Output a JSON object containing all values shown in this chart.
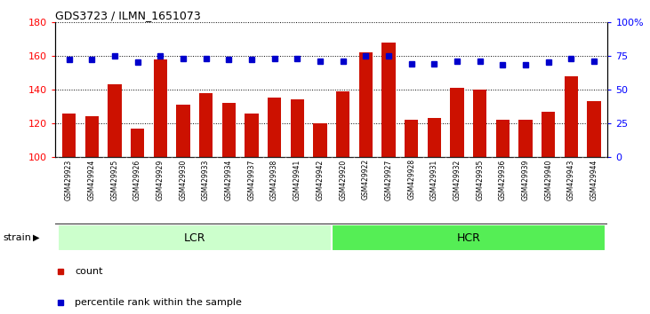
{
  "title": "GDS3723 / ILMN_1651073",
  "samples": [
    "GSM429923",
    "GSM429924",
    "GSM429925",
    "GSM429926",
    "GSM429929",
    "GSM429930",
    "GSM429933",
    "GSM429934",
    "GSM429937",
    "GSM429938",
    "GSM429941",
    "GSM429942",
    "GSM429920",
    "GSM429922",
    "GSM429927",
    "GSM429928",
    "GSM429931",
    "GSM429932",
    "GSM429935",
    "GSM429936",
    "GSM429939",
    "GSM429940",
    "GSM429943",
    "GSM429944"
  ],
  "counts": [
    126,
    124,
    143,
    117,
    158,
    131,
    138,
    132,
    126,
    135,
    134,
    120,
    139,
    162,
    168,
    122,
    123,
    141,
    140,
    122,
    122,
    127,
    148,
    133
  ],
  "percentile_ranks_pct": [
    72,
    72,
    75,
    70,
    75,
    73,
    73,
    72,
    72,
    73,
    73,
    71,
    71,
    75,
    75,
    69,
    69,
    71,
    71,
    68,
    68,
    70,
    73,
    71
  ],
  "groups": [
    {
      "label": "LCR",
      "start": 0,
      "end": 12,
      "color": "#ccffcc"
    },
    {
      "label": "HCR",
      "start": 12,
      "end": 24,
      "color": "#55ee55"
    }
  ],
  "bar_color": "#cc1100",
  "dot_color": "#0000cc",
  "ylim_left": [
    100,
    180
  ],
  "ylim_right": [
    0,
    100
  ],
  "yticks_left": [
    100,
    120,
    140,
    160,
    180
  ],
  "ytick_labels_left": [
    "100",
    "120",
    "140",
    "160",
    "180"
  ],
  "yticks_right": [
    0,
    25,
    50,
    75,
    100
  ],
  "ytick_labels_right": [
    "0",
    "25",
    "50",
    "75",
    "100%"
  ],
  "background_color": "#ffffff",
  "plot_bg_color": "#ffffff",
  "tick_area_color": "#cccccc",
  "strain_label": "strain",
  "legend_count": "count",
  "legend_pct": "percentile rank within the sample"
}
